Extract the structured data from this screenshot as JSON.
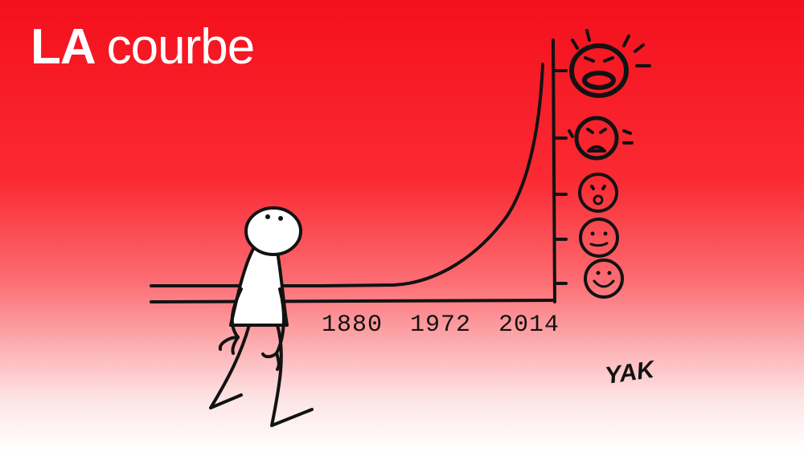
{
  "title": {
    "prefix": "LA",
    "word": "courbe"
  },
  "axis_years": [
    "1880",
    "1972",
    "2014"
  ],
  "faces": [
    "screaming-face-icon",
    "crying-face-icon",
    "worried-face-icon",
    "neutral-face-icon",
    "smiling-face-icon"
  ],
  "signature": "YAK",
  "colors": {
    "background_top": "#f4101c",
    "background_bottom": "#ffffff",
    "ink": "#121212",
    "figure": "#ffffff"
  }
}
